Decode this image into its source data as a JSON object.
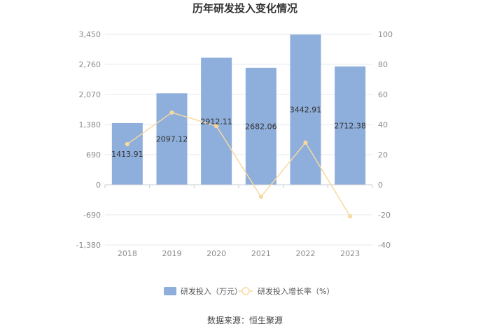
{
  "chart_data": {
    "type": "bar",
    "title": "历年研发投入变化情况",
    "categories": [
      "2018",
      "2019",
      "2020",
      "2021",
      "2022",
      "2023"
    ],
    "series": [
      {
        "name": "研发投入（万元）",
        "type": "bar",
        "axis": "left",
        "values": [
          1413.91,
          2097.12,
          2912.11,
          2682.06,
          3442.91,
          2712.38
        ],
        "labels": [
          "1413.91",
          "2097.12",
          "2912.11",
          "2682.06",
          "3442.91",
          "2712.38"
        ],
        "color": "#8eaedb"
      },
      {
        "name": "研发投入增长率（%）",
        "type": "line",
        "axis": "right",
        "values": [
          27,
          48,
          39,
          -8,
          28,
          -21
        ],
        "color": "#f7d9a0"
      }
    ],
    "y_left": {
      "ylim": [
        -1380,
        3450
      ],
      "ticks": [
        3450,
        2760,
        2070,
        1380,
        690,
        0,
        -690,
        -1380
      ],
      "tick_labels": [
        "3,450",
        "2,760",
        "2,070",
        "1,380",
        "690",
        "0",
        "-690",
        "-1,380"
      ]
    },
    "y_right": {
      "ylim": [
        -40,
        100
      ],
      "ticks": [
        100,
        80,
        60,
        40,
        20,
        0,
        -20,
        -40
      ],
      "tick_labels": [
        "100",
        "80",
        "60",
        "40",
        "20",
        "0",
        "-20",
        "-40"
      ]
    },
    "grid": true,
    "legend_position": "bottom"
  },
  "source": "数据来源：恒生聚源",
  "colors": {
    "bar": "#8eaedb",
    "line": "#f7d9a0",
    "grid": "#e6e8ee",
    "axis": "#c9ccd3"
  }
}
